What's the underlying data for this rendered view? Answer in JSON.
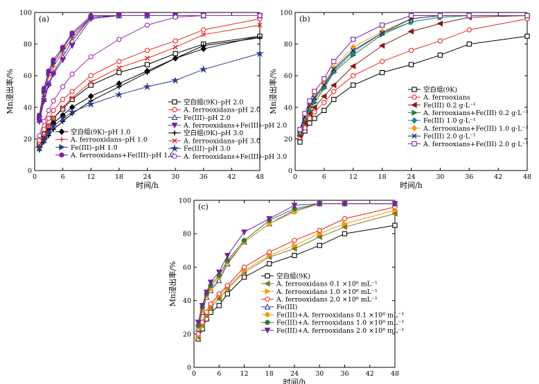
{
  "chart_data": [
    {
      "type": "line",
      "panel_label": "(a)",
      "xlabel": "时间/h",
      "ylabel": "Mn浸出率/%",
      "xlim": [
        0,
        48
      ],
      "ylim": [
        0,
        100
      ],
      "xticks": [
        0,
        6,
        12,
        18,
        24,
        30,
        36,
        42,
        48
      ],
      "yticks": [
        0,
        20,
        40,
        60,
        80,
        100
      ],
      "legend_placement": "bottom-left and bottom-right",
      "series": [
        {
          "name": "空白组(9K)–pH 1.0",
          "color": "#000000",
          "marker": "diamond",
          "x": [
            1,
            2,
            3,
            4,
            6,
            8,
            12,
            18,
            24,
            30,
            36,
            48
          ],
          "y": [
            15,
            21,
            26,
            30,
            35,
            40,
            47,
            55,
            63,
            71,
            77,
            85
          ]
        },
        {
          "name": "A. ferrooxidans–pH 1.0",
          "color": "#e8271e",
          "marker": "plus",
          "x": [
            1,
            2,
            3,
            4,
            6,
            8,
            12,
            18,
            24,
            30,
            36,
            48
          ],
          "y": [
            33,
            47,
            60,
            66,
            75,
            84,
            97,
            98,
            98,
            98,
            98,
            98
          ]
        },
        {
          "name": "Fe(III)–pH 1.0",
          "color": "#2a3b8f",
          "marker": "tri-right",
          "x": [
            1,
            2,
            3,
            4,
            6,
            8,
            12,
            18,
            24,
            30,
            36,
            48
          ],
          "y": [
            34,
            50,
            62,
            68,
            77,
            86,
            97,
            98,
            98,
            98,
            98,
            98
          ]
        },
        {
          "name": "A. ferrooxidans+Fe(III)–pH 1.0",
          "color": "#7b1fa2",
          "marker": "hexagon",
          "x": [
            1,
            2,
            3,
            4,
            6,
            8,
            12,
            18,
            24,
            30,
            36,
            48
          ],
          "y": [
            35,
            52,
            63,
            70,
            78,
            87,
            98,
            98,
            98,
            98,
            98,
            98
          ]
        },
        {
          "name": "空白组(9K)–pH 2.0",
          "color": "#000000",
          "marker": "square",
          "x": [
            1,
            2,
            3,
            4,
            6,
            8,
            12,
            18,
            24,
            30,
            36,
            48
          ],
          "y": [
            17,
            23,
            28,
            33,
            39,
            45,
            54,
            62,
            67,
            74,
            80,
            85
          ]
        },
        {
          "name": "A. ferrooxidans–pH 2.0",
          "color": "#e8271e",
          "marker": "circle",
          "x": [
            1,
            2,
            3,
            4,
            6,
            8,
            12,
            18,
            24,
            30,
            36,
            48
          ],
          "y": [
            19,
            26,
            33,
            38,
            45,
            50,
            60,
            69,
            76,
            82,
            89,
            96
          ]
        },
        {
          "name": "Fe(III)–pH 2.0",
          "color": "#2a3b8f",
          "marker": "triangle",
          "x": [
            1,
            2,
            3,
            4,
            6,
            8,
            12,
            18,
            24,
            30,
            36,
            48
          ],
          "y": [
            32,
            45,
            55,
            62,
            72,
            82,
            97,
            98,
            98,
            98,
            98,
            98
          ]
        },
        {
          "name": "A. ferrooxidans+Fe(III)–pH 2.0",
          "color": "#7b1fa2",
          "marker": "tri-down",
          "x": [
            1,
            2,
            3,
            4,
            6,
            8,
            12,
            18,
            24,
            30,
            36,
            48
          ],
          "y": [
            31,
            44,
            54,
            61,
            70,
            79,
            96,
            98,
            98,
            98,
            98,
            98
          ]
        },
        {
          "name": "空白组(9K)–pH 3.0",
          "color": "#000000",
          "marker": "plus",
          "x": [
            1,
            2,
            3,
            4,
            6,
            8,
            12,
            18,
            24,
            30,
            36,
            48
          ],
          "y": [
            13,
            18,
            22,
            26,
            31,
            36,
            44,
            53,
            62,
            71,
            79,
            84
          ]
        },
        {
          "name": "A. ferrooxidans–pH 3.0",
          "color": "#e8271e",
          "marker": "x",
          "x": [
            1,
            2,
            3,
            4,
            6,
            8,
            12,
            18,
            24,
            30,
            36,
            48
          ],
          "y": [
            16,
            22,
            28,
            33,
            40,
            46,
            56,
            65,
            71,
            78,
            86,
            92
          ]
        },
        {
          "name": "Fe(III)–pH 3.0",
          "color": "#2a3b8f",
          "marker": "star",
          "x": [
            1,
            2,
            3,
            4,
            6,
            8,
            12,
            18,
            24,
            30,
            36,
            48
          ],
          "y": [
            14,
            19,
            24,
            28,
            33,
            37,
            42,
            48,
            53,
            57,
            64,
            74
          ]
        },
        {
          "name": "A. ferrooxidans+Fe(III)–pH 3.0",
          "color": "#9c27b0",
          "marker": "hexagon-open",
          "x": [
            1,
            2,
            3,
            4,
            6,
            8,
            12,
            18,
            24,
            30,
            36,
            48
          ],
          "y": [
            22,
            31,
            38,
            44,
            53,
            61,
            72,
            83,
            92,
            97,
            98,
            98
          ]
        }
      ]
    },
    {
      "type": "line",
      "panel_label": "(b)",
      "xlabel": "时间/h",
      "ylabel": "Mn浸出率/%",
      "xlim": [
        0,
        48
      ],
      "ylim": [
        0,
        100
      ],
      "xticks": [
        0,
        6,
        12,
        18,
        24,
        30,
        36,
        42,
        48
      ],
      "yticks": [
        0,
        20,
        40,
        60,
        80,
        100
      ],
      "legend_placement": "bottom-right",
      "series": [
        {
          "name": "空白组(9K)",
          "color": "#000000",
          "marker": "square",
          "x": [
            1,
            2,
            3,
            4,
            6,
            8,
            12,
            18,
            24,
            30,
            36,
            48
          ],
          "y": [
            18,
            25,
            30,
            33,
            38,
            45,
            54,
            62,
            67,
            73,
            80,
            85
          ]
        },
        {
          "name": "A. ferrooxians",
          "color": "#e8271e",
          "marker": "circle",
          "x": [
            1,
            2,
            3,
            4,
            6,
            8,
            12,
            18,
            24,
            30,
            36,
            48
          ],
          "y": [
            21,
            27,
            33,
            37,
            43,
            50,
            60,
            69,
            76,
            82,
            89,
            96
          ]
        },
        {
          "name": "Fe(III) 0.2 g·L⁻¹",
          "color": "#8b1a1a",
          "marker": "tri-left",
          "x": [
            1,
            2,
            3,
            4,
            6,
            8,
            12,
            18,
            24,
            30,
            36,
            48
          ],
          "y": [
            22,
            30,
            36,
            40,
            47,
            54,
            66,
            79,
            88,
            93,
            97,
            98
          ]
        },
        {
          "name": "A. ferrooxians+Fe(III) 0.2 g·L⁻¹",
          "color": "#2e7d32",
          "marker": "tri-right",
          "x": [
            1,
            2,
            3,
            4,
            6,
            8,
            12,
            18,
            24,
            30,
            36,
            48
          ],
          "y": [
            24,
            32,
            38,
            43,
            52,
            62,
            73,
            86,
            94,
            97,
            98,
            98
          ]
        },
        {
          "name": "Fe(III) 1.0 g·L⁻¹",
          "color": "#1a8a8a",
          "marker": "diamond",
          "x": [
            1,
            2,
            3,
            4,
            6,
            8,
            12,
            18,
            24,
            30,
            36,
            48
          ],
          "y": [
            24,
            33,
            40,
            45,
            53,
            63,
            75,
            87,
            94,
            97,
            98,
            98
          ]
        },
        {
          "name": "A. ferrooxians+Fe(III) 1.0 g·L⁻¹",
          "color": "#f39c12",
          "marker": "diamond",
          "x": [
            1,
            2,
            3,
            4,
            6,
            8,
            12,
            18,
            24,
            30,
            36,
            48
          ],
          "y": [
            25,
            34,
            41,
            47,
            55,
            65,
            78,
            88,
            96,
            98,
            98,
            98
          ]
        },
        {
          "name": "Fe(III) 2.0 g·L⁻¹",
          "color": "#1a237e",
          "marker": "x",
          "x": [
            1,
            2,
            3,
            4,
            6,
            8,
            12,
            18,
            24,
            30,
            36,
            48
          ],
          "y": [
            25,
            34,
            41,
            46,
            54,
            64,
            76,
            87,
            96,
            98,
            98,
            98
          ]
        },
        {
          "name": "A. ferrooxians+Fe(III) 2.0 g·L⁻¹",
          "color": "#7b1fa2",
          "marker": "square",
          "x": [
            1,
            2,
            3,
            4,
            6,
            8,
            12,
            18,
            24,
            30,
            36,
            48
          ],
          "y": [
            26,
            36,
            44,
            50,
            58,
            69,
            83,
            92,
            98,
            98,
            98,
            98
          ]
        }
      ]
    },
    {
      "type": "line",
      "panel_label": "(c)",
      "xlabel": "时间/h",
      "ylabel": "Mn浸出率/%",
      "xlim": [
        0,
        48
      ],
      "ylim": [
        0,
        100
      ],
      "xticks": [
        0,
        6,
        12,
        18,
        24,
        30,
        36,
        42,
        48
      ],
      "yticks": [
        0,
        20,
        40,
        60,
        80,
        100
      ],
      "legend_placement": "bottom-right",
      "series": [
        {
          "name": "空白组(9K)",
          "color": "#000000",
          "marker": "square",
          "x": [
            1,
            2,
            3,
            4,
            6,
            8,
            12,
            18,
            24,
            30,
            36,
            48
          ],
          "y": [
            17,
            23,
            29,
            33,
            37,
            44,
            54,
            62,
            67,
            73,
            80,
            85
          ]
        },
        {
          "name": "A. ferrooxidans 0.1 ×10⁸ mL⁻¹",
          "color": "#7a7a2a",
          "marker": "tri-left",
          "x": [
            1,
            2,
            3,
            4,
            6,
            8,
            12,
            18,
            24,
            30,
            36,
            48
          ],
          "y": [
            18,
            25,
            31,
            36,
            41,
            47,
            57,
            66,
            71,
            78,
            84,
            92
          ]
        },
        {
          "name": "A. ferrooxidans 1.0 ×10⁸ mL⁻¹",
          "color": "#f39c12",
          "marker": "tri-right",
          "x": [
            1,
            2,
            3,
            4,
            6,
            8,
            12,
            18,
            24,
            30,
            36,
            48
          ],
          "y": [
            19,
            26,
            32,
            37,
            43,
            48,
            58,
            67,
            73,
            80,
            86,
            94
          ]
        },
        {
          "name": "A. ferrooxidans 2.0 ×10⁸ mL⁻¹",
          "color": "#e8271e",
          "marker": "circle",
          "x": [
            1,
            2,
            3,
            4,
            6,
            8,
            12,
            18,
            24,
            30,
            36,
            48
          ],
          "y": [
            20,
            27,
            33,
            38,
            44,
            49,
            60,
            69,
            76,
            82,
            89,
            96
          ]
        },
        {
          "name": "Fe(III)",
          "color": "#2a3b8f",
          "marker": "triangle",
          "x": [
            1,
            2,
            3,
            4,
            6,
            8,
            12,
            18,
            24,
            30,
            36,
            48
          ],
          "y": [
            23,
            33,
            42,
            46,
            52,
            62,
            75,
            86,
            94,
            98,
            98,
            98
          ]
        },
        {
          "name": "Fe(III)+A. ferrooxidans 0.1 ×10⁸ mL⁻¹",
          "color": "#f39c12",
          "marker": "hexagon",
          "x": [
            1,
            2,
            3,
            4,
            6,
            8,
            12,
            18,
            24,
            30,
            36,
            48
          ],
          "y": [
            24,
            34,
            43,
            47,
            54,
            63,
            75,
            86,
            93,
            98,
            98,
            98
          ]
        },
        {
          "name": "Fe(III)+A. ferrooxidans 1.0 ×10⁸ mL⁻¹",
          "color": "#2e7d32",
          "marker": "hexagon",
          "x": [
            1,
            2,
            3,
            4,
            6,
            8,
            12,
            18,
            24,
            30,
            36,
            48
          ],
          "y": [
            25,
            36,
            44,
            49,
            55,
            64,
            76,
            88,
            95,
            98,
            98,
            98
          ]
        },
        {
          "name": "Fe(III)+A. ferrooxidans 2.0 ×10⁸ mL⁻¹",
          "color": "#7b1fa2",
          "marker": "tri-down",
          "x": [
            1,
            2,
            3,
            4,
            6,
            8,
            12,
            18,
            24,
            30,
            36,
            48
          ],
          "y": [
            27,
            37,
            45,
            51,
            57,
            67,
            81,
            89,
            97,
            98,
            98,
            98
          ]
        }
      ]
    }
  ]
}
